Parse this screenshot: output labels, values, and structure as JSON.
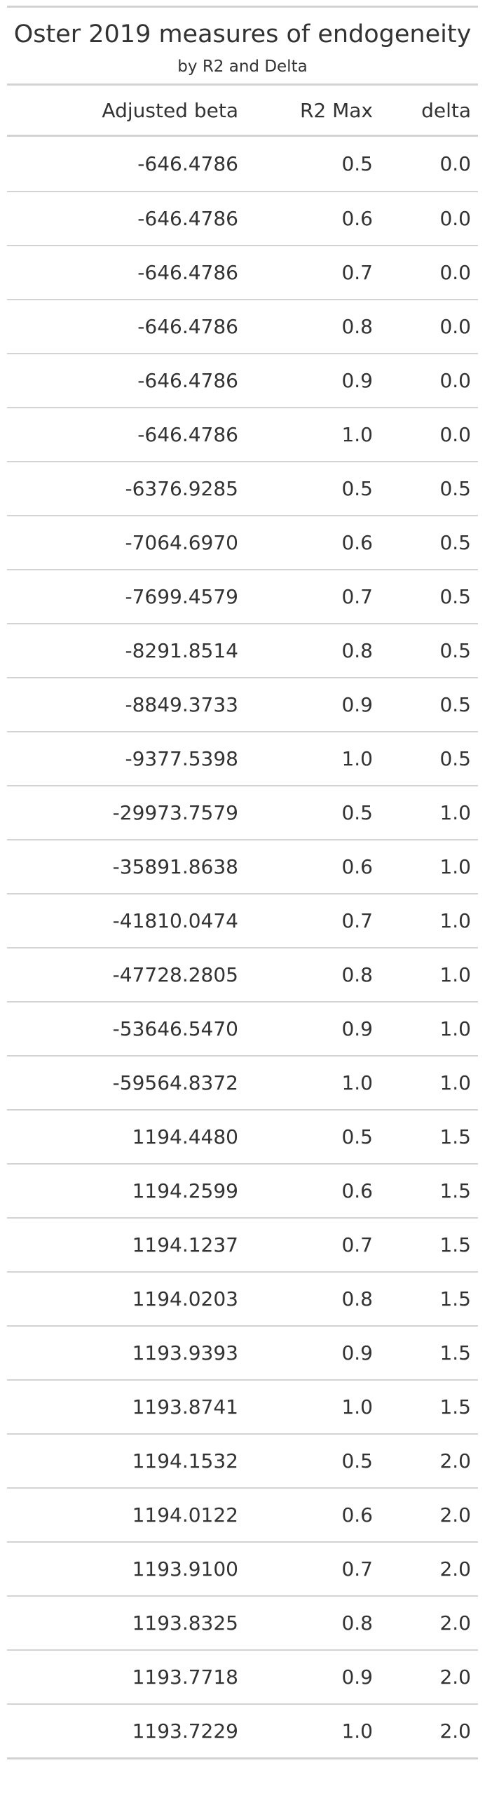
{
  "table": {
    "title": "Oster 2019 measures of endogeneity",
    "subtitle": "by R2 and Delta",
    "columns": [
      "Adjusted beta",
      "R2 Max",
      "delta"
    ],
    "rows": [
      [
        "-646.4786",
        "0.5",
        "0.0"
      ],
      [
        "-646.4786",
        "0.6",
        "0.0"
      ],
      [
        "-646.4786",
        "0.7",
        "0.0"
      ],
      [
        "-646.4786",
        "0.8",
        "0.0"
      ],
      [
        "-646.4786",
        "0.9",
        "0.0"
      ],
      [
        "-646.4786",
        "1.0",
        "0.0"
      ],
      [
        "-6376.9285",
        "0.5",
        "0.5"
      ],
      [
        "-7064.6970",
        "0.6",
        "0.5"
      ],
      [
        "-7699.4579",
        "0.7",
        "0.5"
      ],
      [
        "-8291.8514",
        "0.8",
        "0.5"
      ],
      [
        "-8849.3733",
        "0.9",
        "0.5"
      ],
      [
        "-9377.5398",
        "1.0",
        "0.5"
      ],
      [
        "-29973.7579",
        "0.5",
        "1.0"
      ],
      [
        "-35891.8638",
        "0.6",
        "1.0"
      ],
      [
        "-41810.0474",
        "0.7",
        "1.0"
      ],
      [
        "-47728.2805",
        "0.8",
        "1.0"
      ],
      [
        "-53646.5470",
        "0.9",
        "1.0"
      ],
      [
        "-59564.8372",
        "1.0",
        "1.0"
      ],
      [
        "1194.4480",
        "0.5",
        "1.5"
      ],
      [
        "1194.2599",
        "0.6",
        "1.5"
      ],
      [
        "1194.1237",
        "0.7",
        "1.5"
      ],
      [
        "1194.0203",
        "0.8",
        "1.5"
      ],
      [
        "1193.9393",
        "0.9",
        "1.5"
      ],
      [
        "1193.8741",
        "1.0",
        "1.5"
      ],
      [
        "1194.1532",
        "0.5",
        "2.0"
      ],
      [
        "1194.0122",
        "0.6",
        "2.0"
      ],
      [
        "1193.9100",
        "0.7",
        "2.0"
      ],
      [
        "1193.8325",
        "0.8",
        "2.0"
      ],
      [
        "1193.7718",
        "0.9",
        "2.0"
      ],
      [
        "1193.7229",
        "1.0",
        "2.0"
      ]
    ]
  }
}
